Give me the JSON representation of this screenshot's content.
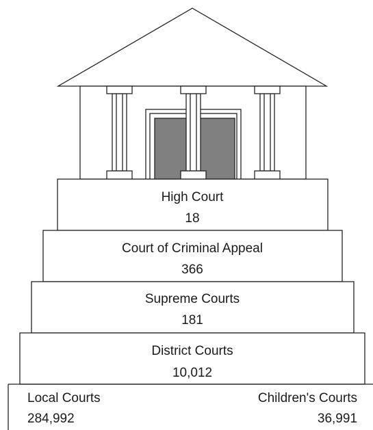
{
  "levels": [
    {
      "label": "High Court",
      "value": "18"
    },
    {
      "label": "Court of Criminal Appeal",
      "value": "366"
    },
    {
      "label": "Supreme Courts",
      "value": "181"
    },
    {
      "label": "District Courts",
      "value": "10,012"
    }
  ],
  "base": [
    {
      "label": "Local Courts",
      "value": "284,992"
    },
    {
      "label": "Children's Courts",
      "value": "36,991"
    }
  ]
}
